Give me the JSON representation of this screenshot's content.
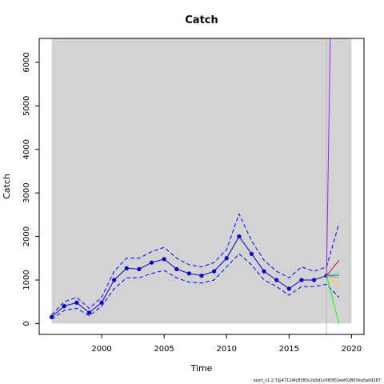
{
  "chart_data": {
    "type": "line",
    "title": "Catch",
    "xlabel": "Time",
    "ylabel": "Catch",
    "footer": "spict_v1.2.7@47114fc8383c2a5d1c080f02eef02803ea5a0d287",
    "xlim": [
      1995.0,
      2021.0
    ],
    "ylim": [
      -250,
      6550
    ],
    "x_ticks": [
      2000,
      2005,
      2010,
      2015,
      2020
    ],
    "y_ticks": [
      0,
      1000,
      2000,
      3000,
      4000,
      5000,
      6000
    ],
    "shaded_region": {
      "x": [
        1996,
        2020
      ],
      "y": [
        0,
        6550
      ],
      "color": "#d3d3d3"
    },
    "vertical_line": {
      "x": 2018,
      "color": "#bbbbbb"
    },
    "series": [
      {
        "name": "",
        "style": "solid",
        "color": "#0000cd",
        "markers": true,
        "x": [
          1996,
          1997,
          1998,
          1999,
          2000,
          2001,
          2002,
          2003,
          2004,
          2005,
          2006,
          2007,
          2008,
          2009,
          2010,
          2011,
          2012,
          2013,
          2014,
          2015,
          2016,
          2017,
          2018
        ],
        "y": [
          150,
          400,
          480,
          250,
          480,
          1000,
          1270,
          1250,
          1400,
          1480,
          1250,
          1150,
          1100,
          1200,
          1500,
          2000,
          1600,
          1200,
          1000,
          800,
          1000,
          1000,
          1100
        ]
      },
      {
        "name": "",
        "style": "dashed",
        "color": "#0000ff",
        "markers": false,
        "x": [
          1996,
          1997,
          1998,
          1999,
          2000,
          2001,
          2002,
          2003,
          2004,
          2005,
          2006,
          2007,
          2008,
          2009,
          2010,
          2011,
          2012,
          2013,
          2014,
          2015,
          2016,
          2017,
          2018,
          2019
        ],
        "y": [
          200,
          500,
          600,
          350,
          600,
          1200,
          1500,
          1500,
          1650,
          1750,
          1500,
          1350,
          1300,
          1400,
          1700,
          2520,
          1900,
          1450,
          1200,
          1050,
          1300,
          1200,
          1300,
          2300
        ]
      },
      {
        "name": "",
        "style": "dashed",
        "color": "#0000ff",
        "markers": false,
        "x": [
          1996,
          1997,
          1998,
          1999,
          2000,
          2001,
          2002,
          2003,
          2004,
          2005,
          2006,
          2007,
          2008,
          2009,
          2010,
          2011,
          2012,
          2013,
          2014,
          2015,
          2016,
          2017,
          2018,
          2019
        ],
        "y": [
          100,
          300,
          350,
          180,
          400,
          800,
          1050,
          1050,
          1150,
          1220,
          1050,
          950,
          930,
          1000,
          1300,
          1600,
          1350,
          1000,
          850,
          650,
          850,
          850,
          900,
          600
        ]
      },
      {
        "name": "",
        "style": "solid",
        "color": "#a020f0",
        "markers": false,
        "x": [
          2018,
          2018.3
        ],
        "y": [
          1100,
          6550
        ]
      },
      {
        "name": "",
        "style": "solid",
        "color": "#b22222",
        "markers": false,
        "x": [
          2018,
          2019
        ],
        "y": [
          1100,
          1450
        ]
      },
      {
        "name": "",
        "style": "solid",
        "color": "#00ff00",
        "markers": false,
        "x": [
          2018,
          2019
        ],
        "y": [
          1100,
          0
        ]
      },
      {
        "name": "",
        "style": "solid",
        "color": "#00ced1",
        "markers": false,
        "x": [
          2018,
          2019
        ],
        "y": [
          1100,
          1150
        ]
      },
      {
        "name": "",
        "style": "solid",
        "color": "#ff8c00",
        "markers": false,
        "x": [
          2018,
          2019
        ],
        "y": [
          1100,
          1050
        ]
      },
      {
        "name": "",
        "style": "solid",
        "color": "#ffd700",
        "markers": false,
        "x": [
          2018,
          2019
        ],
        "y": [
          1100,
          900
        ]
      },
      {
        "name": "",
        "style": "solid",
        "color": "#1e90ff",
        "markers": false,
        "x": [
          2018,
          2019
        ],
        "y": [
          1100,
          1100
        ]
      }
    ]
  }
}
